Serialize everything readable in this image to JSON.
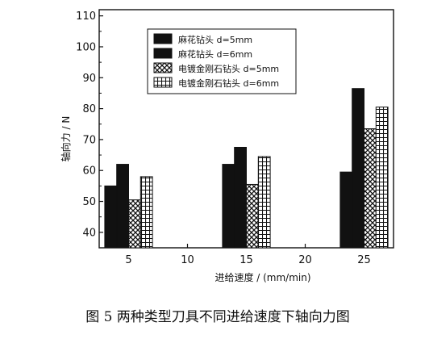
{
  "chart_data": {
    "type": "bar",
    "categories": [
      "5",
      "15",
      "25"
    ],
    "x_ticks": [
      "5",
      "10",
      "15",
      "20",
      "25"
    ],
    "y_ticks": [
      "40",
      "50",
      "60",
      "70",
      "80",
      "90",
      "100",
      "110"
    ],
    "ylim": [
      35,
      112
    ],
    "xlabel": "进给速度 / (mm/min)",
    "ylabel": "轴向力 / N",
    "legend_position": "top-right",
    "grid": false,
    "series": [
      {
        "name": "麻花钻头  d=5mm",
        "pattern": "solid",
        "values": [
          55,
          62,
          59.5
        ]
      },
      {
        "name": "麻花钻头  d=6mm",
        "pattern": "solid",
        "values": [
          62,
          67.5,
          86.5
        ]
      },
      {
        "name": "电镀金刚石钻头  d=5mm",
        "pattern": "crosshatch",
        "values": [
          50.5,
          55.5,
          73.5
        ]
      },
      {
        "name": "电镀金刚石钻头  d=6mm",
        "pattern": "grid",
        "values": [
          58,
          64.5,
          80.5
        ]
      }
    ]
  },
  "caption": "图 5   两种类型刀具不同进给速度下轴向力图",
  "colors": {
    "bar": "#111111",
    "background": "#ffffff"
  }
}
